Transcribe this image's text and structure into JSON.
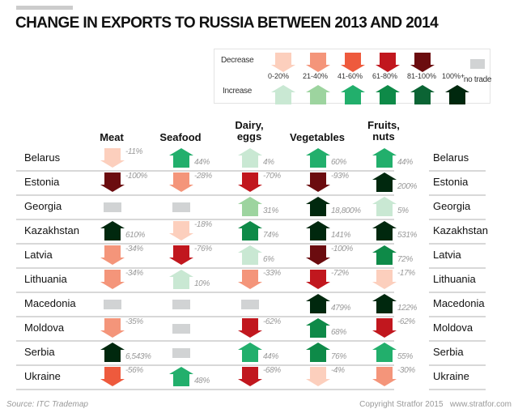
{
  "chart_data": {
    "type": "table",
    "title": "CHANGE IN EXPORTS TO RUSSIA BETWEEN 2013 AND 2014",
    "columns": [
      "Meat",
      "Seafood",
      "Dairy, eggs",
      "Vegetables",
      "Fruits, nuts"
    ],
    "rows": [
      {
        "country": "Belarus",
        "values": [
          "-11%",
          "44%",
          "4%",
          "60%",
          "44%"
        ]
      },
      {
        "country": "Estonia",
        "values": [
          "-100%",
          "-28%",
          "-70%",
          "-93%",
          "200%"
        ]
      },
      {
        "country": "Georgia",
        "values": [
          null,
          null,
          "31%",
          "18,800%",
          "5%"
        ]
      },
      {
        "country": "Kazakhstan",
        "values": [
          "610%",
          "-18%",
          "74%",
          "141%",
          "531%"
        ]
      },
      {
        "country": "Latvia",
        "values": [
          "-34%",
          "-76%",
          "6%",
          "-100%",
          "72%"
        ]
      },
      {
        "country": "Lithuania",
        "values": [
          "-34%",
          "10%",
          "-33%",
          "-72%",
          "-17%"
        ]
      },
      {
        "country": "Macedonia",
        "values": [
          null,
          null,
          null,
          "479%",
          "122%"
        ]
      },
      {
        "country": "Moldova",
        "values": [
          "-35%",
          null,
          "-62%",
          "68%",
          "-62%"
        ]
      },
      {
        "country": "Serbia",
        "values": [
          "6,543%",
          null,
          "44%",
          "76%",
          "55%"
        ]
      },
      {
        "country": "Ukraine",
        "values": [
          "-56%",
          "48%",
          "-68%",
          "-4%",
          "-30%"
        ]
      }
    ],
    "legend": {
      "decrease_label": "Decrease",
      "increase_label": "Increase",
      "ranges": [
        "0-20%",
        "21-40%",
        "41-60%",
        "61-80%",
        "81-100%",
        "100%+"
      ],
      "no_trade_label": "no trade",
      "decrease_colors": [
        "#fccfbd",
        "#f4957a",
        "#ee5a3d",
        "#c1171e",
        "#6b0c0f"
      ],
      "increase_colors": [
        "#c9e8d3",
        "#9dd49f",
        "#22af6c",
        "#0e8a48",
        "#0b6434",
        "#00280e"
      ],
      "no_trade_color": "#d1d3d4"
    },
    "no_trade_meaning": "gray box = no trade"
  },
  "source": "Source: ITC Trademap",
  "copyright": "Copyright Stratfor 2015   www.stratfor.com"
}
